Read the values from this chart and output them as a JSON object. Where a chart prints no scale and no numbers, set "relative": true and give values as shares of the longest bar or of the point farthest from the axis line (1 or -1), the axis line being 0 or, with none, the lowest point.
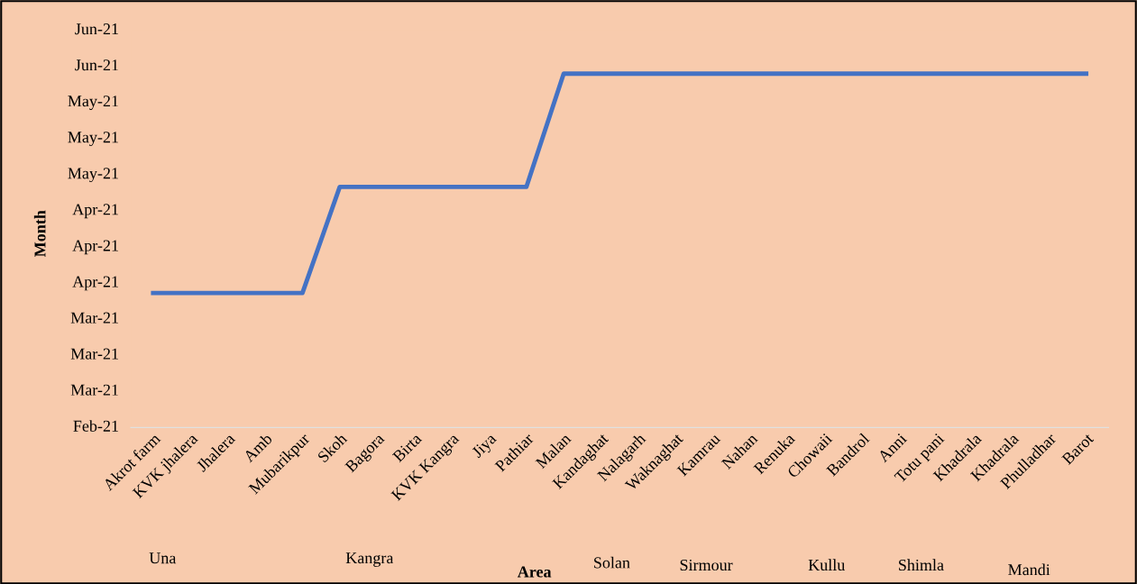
{
  "chart_data": {
    "type": "line",
    "ylabel": "Month",
    "xlabel": "Area",
    "categories": [
      "Akrot farm",
      "KVK jhalera",
      "Jhalera",
      "Amb",
      "Mubarikpur",
      "Skoh",
      "Bagora",
      "Birta",
      "KVK Kangra",
      "Jiya",
      "Pathiar",
      "Malan",
      "Kandaghat",
      "Nalagarh",
      "Waknaghat",
      "Kamrau",
      "Nahan",
      "Renuka",
      "Chowaii",
      "Bandrol",
      "Anni",
      "Totu pani",
      "Khadrala",
      "Khadrala",
      "Phulladhar",
      "Barot"
    ],
    "relative": true,
    "series": [
      {
        "color": "#4472c4",
        "values": [
          0.38,
          0.38,
          0.38,
          0.38,
          0.38,
          0.68,
          0.68,
          0.68,
          0.68,
          0.68,
          0.68,
          1,
          1,
          1,
          1,
          1,
          1,
          1,
          1,
          1,
          1,
          1,
          1,
          1,
          1,
          1
        ]
      }
    ],
    "annotations": [
      "Jun-21",
      "Jun-21",
      "May-21",
      "May-21",
      "May-21",
      "Apr-21",
      "Apr-21",
      "Apr-21",
      "Mar-21",
      "Mar-21",
      "Mar-21",
      "Feb-21",
      "Una",
      "Kangra",
      "Solan",
      "Sirmour",
      "Kullu",
      "Shimla",
      "Mandi"
    ],
    "grid": false,
    "legend": false,
    "marker": "none",
    "line_style": "solid"
  }
}
